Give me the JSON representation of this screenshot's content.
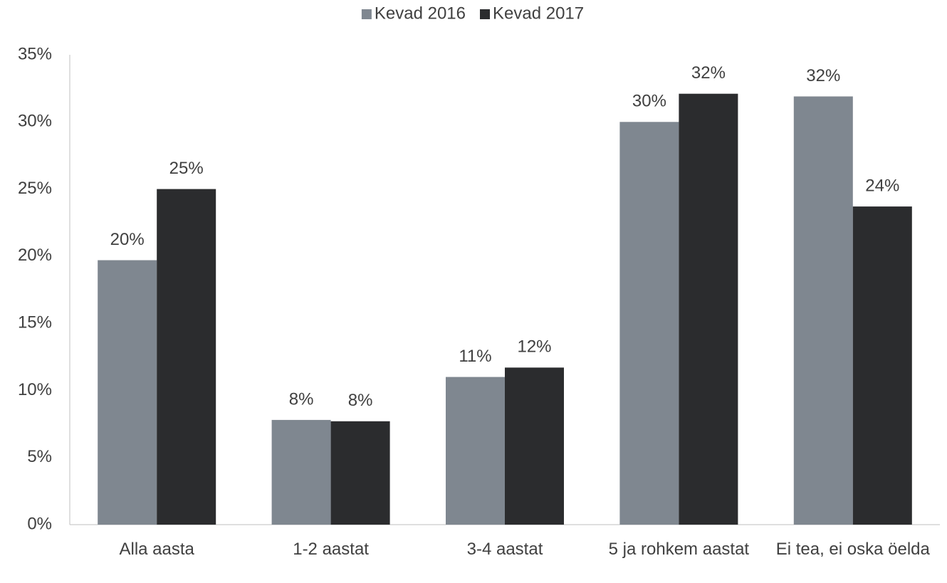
{
  "chart_data": {
    "type": "bar",
    "categories": [
      "Alla aasta",
      "1-2 aastat",
      "3-4 aastat",
      "5 ja rohkem aastat",
      "Ei tea, ei oska öelda"
    ],
    "series": [
      {
        "name": "Kevad 2016",
        "color": "#7f8790",
        "values": [
          19.7,
          7.8,
          11.0,
          30.0,
          31.9
        ],
        "value_labels": [
          "20%",
          "8%",
          "11%",
          "30%",
          "32%"
        ]
      },
      {
        "name": "Kevad 2017",
        "color": "#2b2c2e",
        "values": [
          25.0,
          7.7,
          11.7,
          32.1,
          23.7
        ],
        "value_labels": [
          "25%",
          "8%",
          "12%",
          "32%",
          "24%"
        ]
      }
    ],
    "ylim": [
      0,
      35
    ],
    "yticks": [
      {
        "value": 0,
        "label": "0%"
      },
      {
        "value": 5,
        "label": "5%"
      },
      {
        "value": 10,
        "label": "10%"
      },
      {
        "value": 15,
        "label": "15%"
      },
      {
        "value": 20,
        "label": "20%"
      },
      {
        "value": 25,
        "label": "25%"
      },
      {
        "value": 30,
        "label": "30%"
      },
      {
        "value": 35,
        "label": "35%"
      }
    ],
    "grid": false,
    "legend": "top"
  }
}
